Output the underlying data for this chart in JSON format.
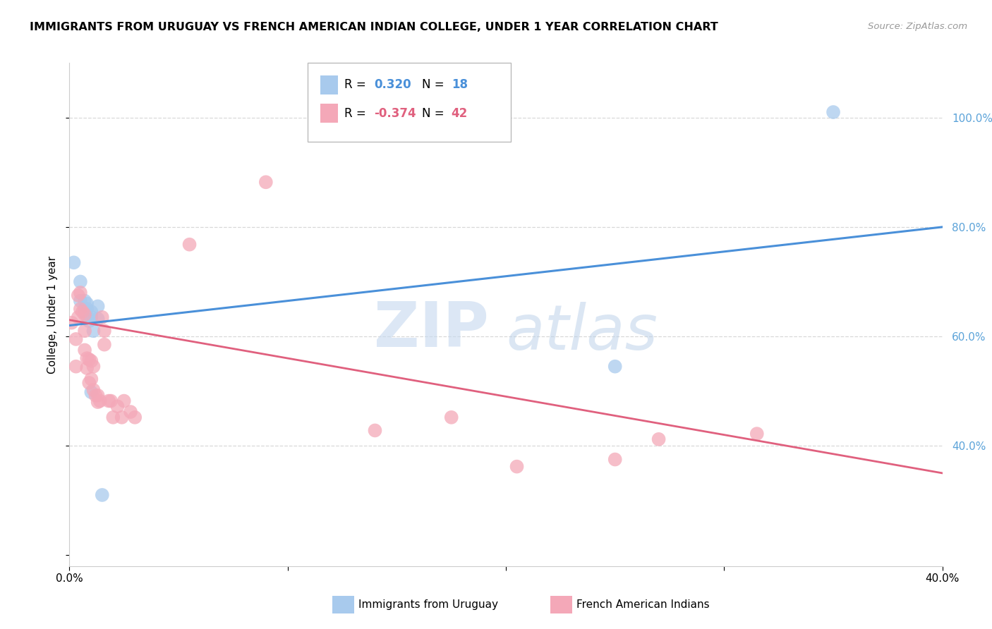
{
  "title": "IMMIGRANTS FROM URUGUAY VS FRENCH AMERICAN INDIAN COLLEGE, UNDER 1 YEAR CORRELATION CHART",
  "source": "Source: ZipAtlas.com",
  "ylabel": "College, Under 1 year",
  "y_ticks_pct": [
    40.0,
    60.0,
    80.0,
    100.0
  ],
  "x_range": [
    0.0,
    0.4
  ],
  "y_range": [
    0.18,
    1.1
  ],
  "legend1_r": "0.320",
  "legend1_n": "18",
  "legend2_r": "-0.374",
  "legend2_n": "42",
  "blue_scatter_color": "#a8caed",
  "pink_scatter_color": "#f4a8b8",
  "blue_line_color": "#4a90d9",
  "pink_line_color": "#e0607e",
  "blue_points_x": [
    0.002,
    0.005,
    0.005,
    0.007,
    0.007,
    0.008,
    0.008,
    0.008,
    0.009,
    0.01,
    0.01,
    0.01,
    0.011,
    0.013,
    0.013,
    0.015,
    0.25,
    0.35
  ],
  "blue_points_y": [
    0.735,
    0.7,
    0.665,
    0.665,
    0.65,
    0.66,
    0.65,
    0.638,
    0.628,
    0.645,
    0.635,
    0.498,
    0.61,
    0.655,
    0.632,
    0.31,
    0.545,
    1.01
  ],
  "pink_points_x": [
    0.001,
    0.003,
    0.003,
    0.004,
    0.004,
    0.005,
    0.005,
    0.006,
    0.007,
    0.007,
    0.007,
    0.008,
    0.008,
    0.009,
    0.009,
    0.01,
    0.01,
    0.011,
    0.011,
    0.012,
    0.013,
    0.013,
    0.014,
    0.015,
    0.016,
    0.016,
    0.018,
    0.019,
    0.02,
    0.022,
    0.024,
    0.025,
    0.028,
    0.03,
    0.055,
    0.09,
    0.14,
    0.175,
    0.205,
    0.25,
    0.27,
    0.315
  ],
  "pink_points_y": [
    0.625,
    0.595,
    0.545,
    0.675,
    0.635,
    0.68,
    0.65,
    0.645,
    0.64,
    0.61,
    0.575,
    0.56,
    0.542,
    0.558,
    0.515,
    0.555,
    0.522,
    0.545,
    0.502,
    0.492,
    0.492,
    0.48,
    0.482,
    0.635,
    0.585,
    0.61,
    0.482,
    0.482,
    0.452,
    0.472,
    0.452,
    0.482,
    0.462,
    0.452,
    0.768,
    0.882,
    0.428,
    0.452,
    0.362,
    0.375,
    0.412,
    0.422
  ],
  "blue_line_x0": 0.0,
  "blue_line_x1": 0.4,
  "blue_line_y0": 0.62,
  "blue_line_y1": 0.8,
  "pink_line_x0": 0.0,
  "pink_line_x1": 0.4,
  "pink_line_y0": 0.63,
  "pink_line_y1": 0.35,
  "watermark_zip": "ZIP",
  "watermark_atlas": "atlas",
  "background_color": "#ffffff",
  "grid_color": "#d8d8d8",
  "right_axis_color": "#5ba3d9"
}
